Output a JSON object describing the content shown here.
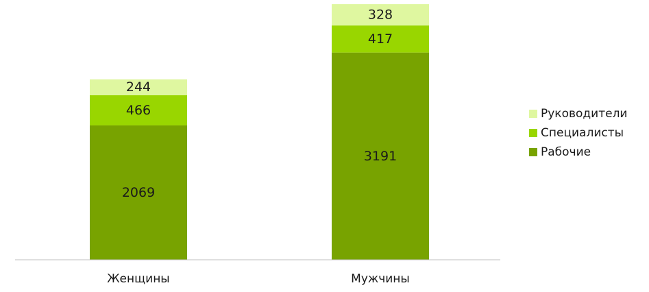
{
  "chart_data": {
    "type": "bar",
    "stacked": true,
    "categories": [
      "Женщины",
      "Мужчины"
    ],
    "series": [
      {
        "name": "Рабочие",
        "values": [
          2069,
          3191
        ],
        "color": "#78a300"
      },
      {
        "name": "Специалисты",
        "values": [
          466,
          417
        ],
        "color": "#99d600"
      },
      {
        "name": "Руководители",
        "values": [
          244,
          328
        ],
        "color": "#dff7a0"
      }
    ],
    "legend_order": [
      "Руководители",
      "Специалисты",
      "Рабочие"
    ],
    "legend_position": "right",
    "data_labels": true,
    "grid": false,
    "ylim": [
      0,
      4000
    ],
    "axis_color": "#bfbfbf"
  }
}
